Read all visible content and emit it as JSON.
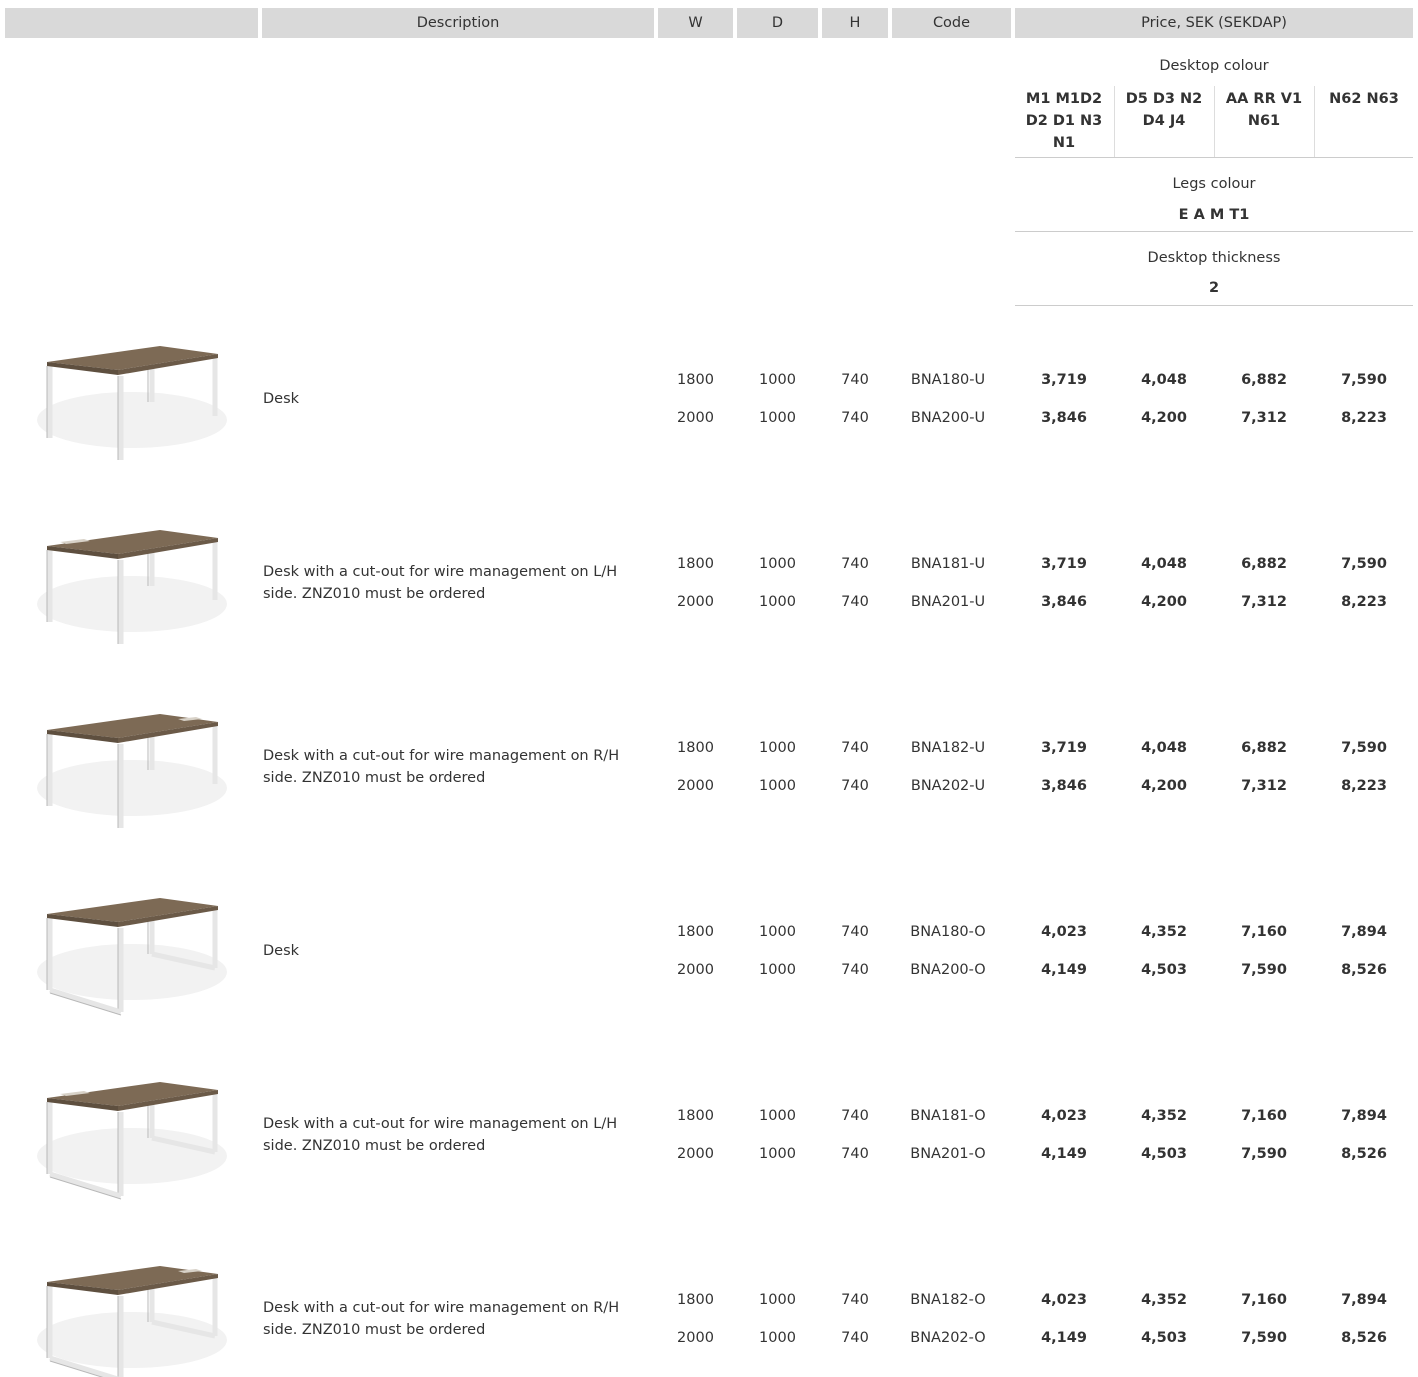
{
  "header": {
    "columns": [
      "Description",
      "W",
      "D",
      "H",
      "Code",
      "Price, SEK (SEKDAP)"
    ]
  },
  "options": {
    "desktop_colour": {
      "label": "Desktop colour",
      "values": [
        "M1 M1D2 D2 D1 N3 N1",
        "D5 D3 N2 D4 J4",
        "AA RR V1 N61",
        "N62 N63"
      ]
    },
    "legs_colour": {
      "label": "Legs colour",
      "value": "E A M T1"
    },
    "desktop_thickness": {
      "label": "Desktop thickness",
      "value": "2"
    }
  },
  "products": [
    {
      "description": "Desk",
      "rows": [
        {
          "w": 1800,
          "d": 1000,
          "h": 740,
          "code": "BNA180-U",
          "prices": [
            "3,719",
            "4,048",
            "6,882",
            "7,590"
          ]
        },
        {
          "w": 2000,
          "d": 1000,
          "h": 740,
          "code": "BNA200-U",
          "prices": [
            "3,846",
            "4,200",
            "7,312",
            "8,223"
          ]
        }
      ]
    },
    {
      "description": "Desk with a cut-out for wire management on L/H side. ZNZ010 must be ordered",
      "rows": [
        {
          "w": 1800,
          "d": 1000,
          "h": 740,
          "code": "BNA181-U",
          "prices": [
            "3,719",
            "4,048",
            "6,882",
            "7,590"
          ]
        },
        {
          "w": 2000,
          "d": 1000,
          "h": 740,
          "code": "BNA201-U",
          "prices": [
            "3,846",
            "4,200",
            "7,312",
            "8,223"
          ]
        }
      ]
    },
    {
      "description": "Desk with a cut-out for wire management on R/H side. ZNZ010 must be ordered",
      "rows": [
        {
          "w": 1800,
          "d": 1000,
          "h": 740,
          "code": "BNA182-U",
          "prices": [
            "3,719",
            "4,048",
            "6,882",
            "7,590"
          ]
        },
        {
          "w": 2000,
          "d": 1000,
          "h": 740,
          "code": "BNA202-U",
          "prices": [
            "3,846",
            "4,200",
            "7,312",
            "8,223"
          ]
        }
      ]
    },
    {
      "description": "Desk",
      "rows": [
        {
          "w": 1800,
          "d": 1000,
          "h": 740,
          "code": "BNA180-O",
          "prices": [
            "4,023",
            "4,352",
            "7,160",
            "7,894"
          ]
        },
        {
          "w": 2000,
          "d": 1000,
          "h": 740,
          "code": "BNA200-O",
          "prices": [
            "4,149",
            "4,503",
            "7,590",
            "8,526"
          ]
        }
      ]
    },
    {
      "description": "Desk with a cut-out for wire management on L/H side. ZNZ010 must be ordered",
      "rows": [
        {
          "w": 1800,
          "d": 1000,
          "h": 740,
          "code": "BNA181-O",
          "prices": [
            "4,023",
            "4,352",
            "7,160",
            "7,894"
          ]
        },
        {
          "w": 2000,
          "d": 1000,
          "h": 740,
          "code": "BNA201-O",
          "prices": [
            "4,149",
            "4,503",
            "7,590",
            "8,526"
          ]
        }
      ]
    },
    {
      "description": "Desk with a cut-out for wire management on R/H side. ZNZ010 must be ordered",
      "rows": [
        {
          "w": 1800,
          "d": 1000,
          "h": 740,
          "code": "BNA182-O",
          "prices": [
            "4,023",
            "4,352",
            "7,160",
            "7,894"
          ]
        },
        {
          "w": 2000,
          "d": 1000,
          "h": 740,
          "code": "BNA202-O",
          "prices": [
            "4,149",
            "4,503",
            "7,590",
            "8,526"
          ]
        }
      ]
    }
  ]
}
